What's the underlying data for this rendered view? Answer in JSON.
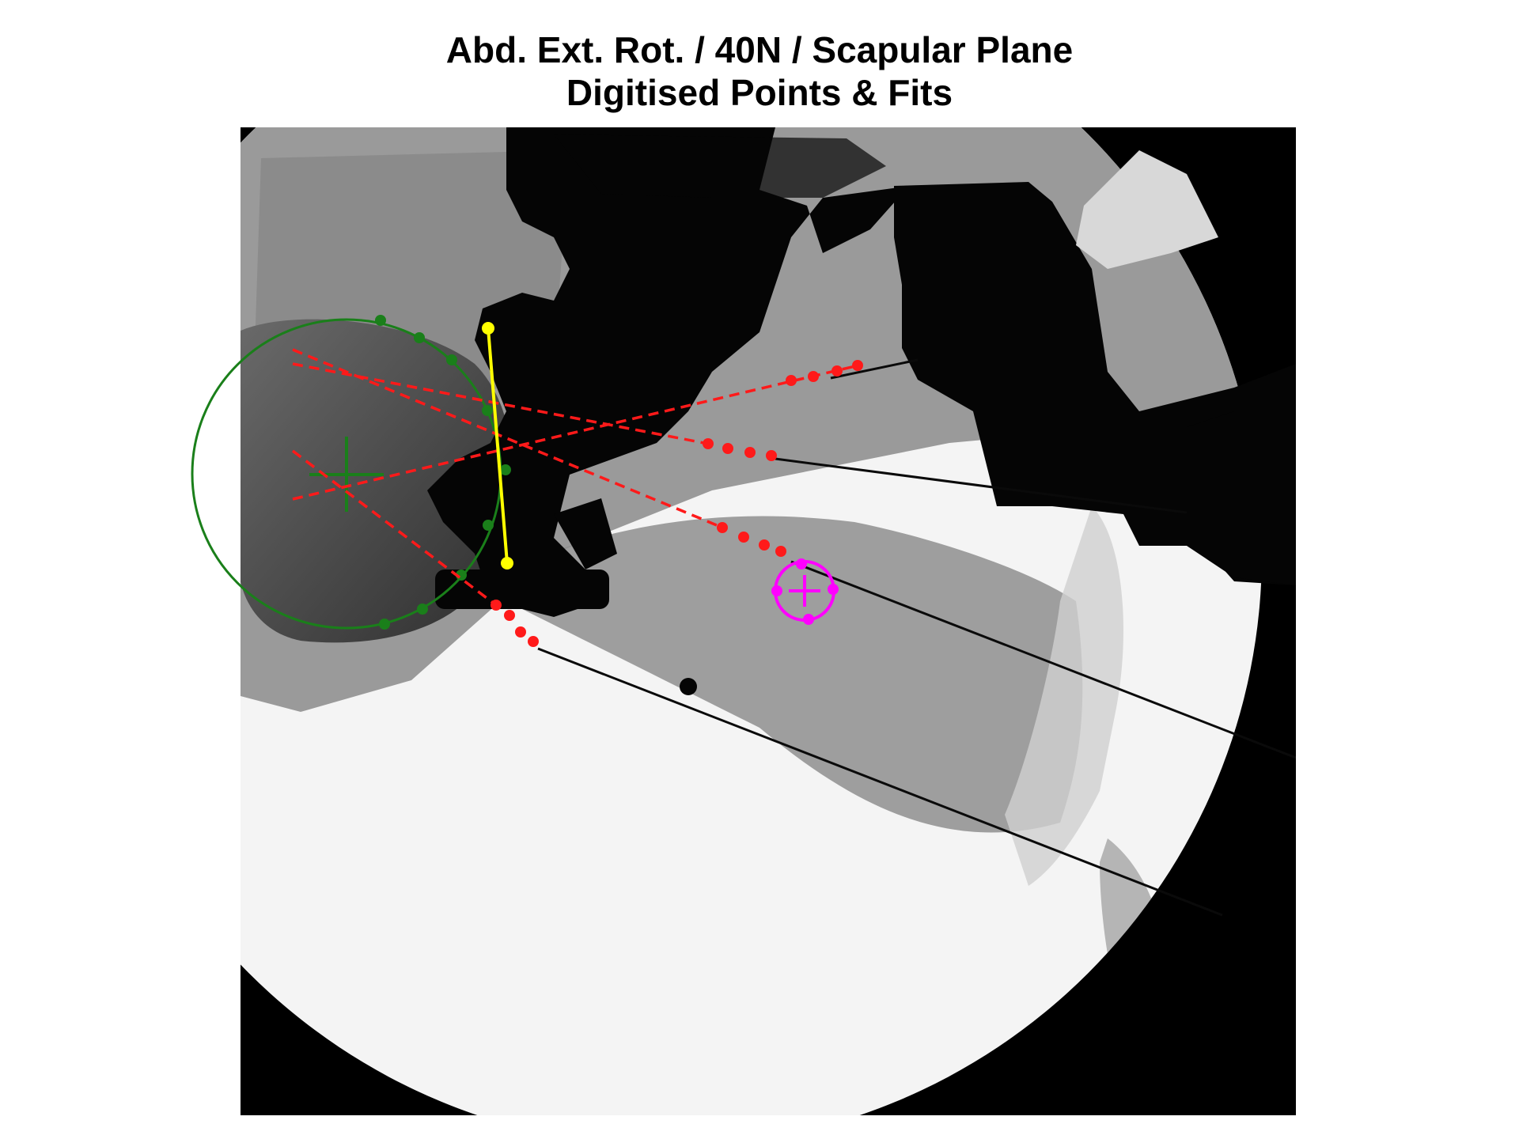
{
  "figure": {
    "title_line1": "Abd. Ext. Rot. / 40N / Scapular Plane",
    "title_line2": "Digitised Points & Fits"
  },
  "colors": {
    "background": "#ffffff",
    "xray_dark": "#000000",
    "xray_bright": "#ffffff",
    "circle_fit": "#1a7f1a",
    "axis_line": "#ffff00",
    "dashed_fits": "#ff1a1a",
    "marker_fit": "#ff00ff"
  },
  "overlays": {
    "humeral_head_fit": {
      "shape": "circle",
      "color_name": "green",
      "center_marker": "crosshair"
    },
    "glenoid_line": {
      "shape": "line",
      "color_name": "yellow",
      "endpoints": 2
    },
    "tendon_fits": {
      "shape": "dashed-lines",
      "color_name": "red",
      "count": 4,
      "points_per_fit": 4
    },
    "bead_marker_fit": {
      "shape": "circle",
      "color_name": "magenta",
      "points": 4,
      "center_marker": "crosshair"
    }
  }
}
